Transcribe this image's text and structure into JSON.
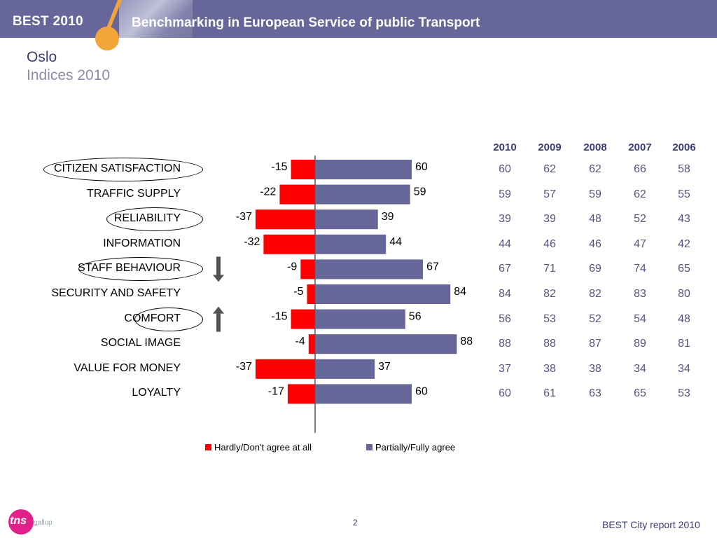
{
  "header": {
    "brand": "BEST 2010",
    "title": "Benchmarking in European Service of public Transport"
  },
  "page": {
    "city": "Oslo",
    "subtitle": "Indices 2010"
  },
  "chart_data": {
    "type": "bar",
    "categories": [
      "CITIZEN SATISFACTION",
      "TRAFFIC SUPPLY",
      "RELIABILITY",
      "INFORMATION",
      "STAFF BEHAVIOUR",
      "SECURITY AND SAFETY",
      "COMFORT",
      "SOCIAL IMAGE",
      "VALUE FOR MONEY",
      "LOYALTY"
    ],
    "series": [
      {
        "name": "Hardly/Don't agree at all",
        "color": "#ff0000",
        "values": [
          -15,
          -22,
          -37,
          -32,
          -9,
          -5,
          -15,
          -4,
          -37,
          -17
        ]
      },
      {
        "name": "Partially/Fully agree",
        "color": "#666699",
        "values": [
          60,
          59,
          39,
          44,
          67,
          84,
          56,
          88,
          37,
          60
        ]
      }
    ],
    "highlighted": [
      "CITIZEN SATISFACTION",
      "RELIABILITY",
      "STAFF BEHAVIOUR",
      "COMFORT"
    ],
    "trend_arrows": {
      "STAFF BEHAVIOUR": "down",
      "COMFORT": "up"
    },
    "legend_position": "bottom"
  },
  "table": {
    "years": [
      "2010",
      "2009",
      "2008",
      "2007",
      "2006"
    ],
    "rows": [
      [
        60,
        62,
        62,
        66,
        58
      ],
      [
        59,
        57,
        59,
        62,
        55
      ],
      [
        39,
        39,
        48,
        52,
        43
      ],
      [
        44,
        46,
        46,
        47,
        42
      ],
      [
        67,
        71,
        69,
        74,
        65
      ],
      [
        84,
        82,
        82,
        83,
        80
      ],
      [
        56,
        53,
        52,
        54,
        48
      ],
      [
        88,
        88,
        87,
        89,
        81
      ],
      [
        37,
        38,
        38,
        34,
        34
      ],
      [
        60,
        61,
        63,
        65,
        53
      ]
    ]
  },
  "footer": {
    "page_number": "2",
    "report": "BEST City report 2010",
    "logo_main": "tns",
    "logo_sub": "gallup"
  }
}
